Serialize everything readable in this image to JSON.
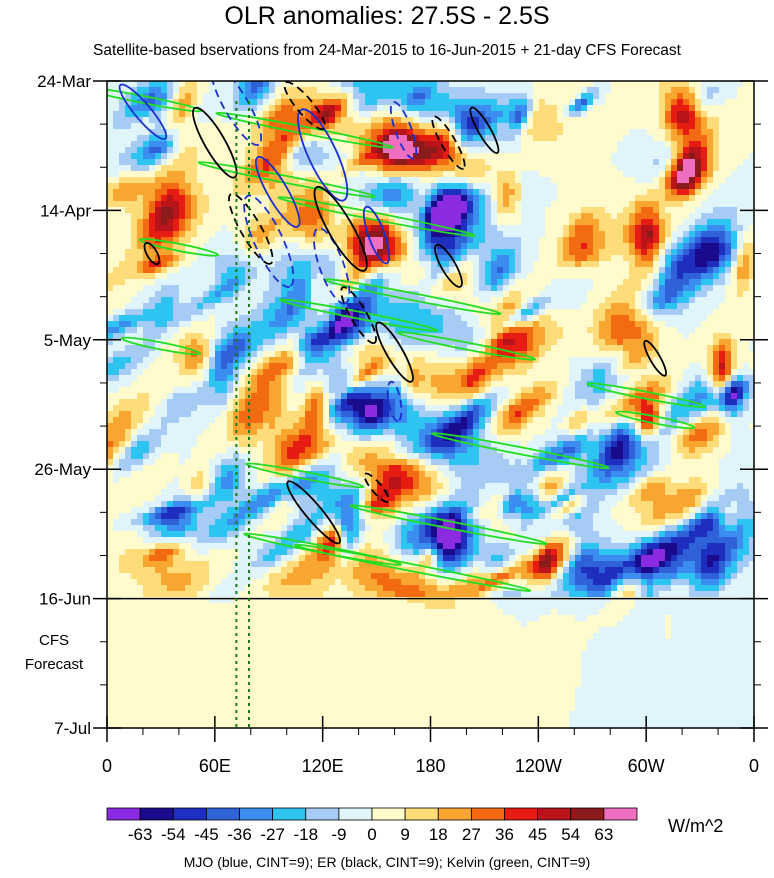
{
  "chart_data": {
    "type": "heatmap",
    "title": "OLR anomalies: 27.5S - 2.5S",
    "subtitle": "Satellite-based bservations from 24-Mar-2015 to 16-Jun-2015 + 21-day CFS Forecast",
    "x_tick_labels": [
      "0",
      "60E",
      "120E",
      "180",
      "120W",
      "60W",
      "0"
    ],
    "x_ticks_deg": [
      0,
      60,
      120,
      180,
      240,
      300,
      360
    ],
    "y_tick_labels": [
      "24-Mar",
      "14-Apr",
      "5-May",
      "26-May",
      "16-Jun",
      "7-Jul"
    ],
    "y_range": [
      "24-Mar",
      "7-Jul"
    ],
    "forecast_start": "16-Jun",
    "forecast_label": [
      "CFS",
      "Forecast"
    ],
    "colorbar": {
      "labels": [
        "-63",
        "-54",
        "-45",
        "-36",
        "-27",
        "-18",
        "-9",
        "0",
        "9",
        "18",
        "27",
        "36",
        "45",
        "54",
        "63"
      ],
      "colors": [
        "#8a2be2",
        "#1a0a8c",
        "#1e2fc0",
        "#2f62d8",
        "#3b8ef0",
        "#2ec4f2",
        "#a6ccf5",
        "#dff5f9",
        "#fffbcc",
        "#fedc7a",
        "#f9a630",
        "#f26b12",
        "#e61b12",
        "#b8141a",
        "#8b1a1a",
        "#f06ec0"
      ],
      "units": "W/m^2"
    },
    "reference_lines_deg": [
      72,
      79
    ],
    "contours": {
      "description": "MJO (blue, CINT=9); ER (black, CINT=9); Kelvin (green, CINT=9)",
      "mjo_color": "#1a2fd0",
      "er_color": "#000000",
      "kelvin_color": "#22dd22"
    }
  }
}
